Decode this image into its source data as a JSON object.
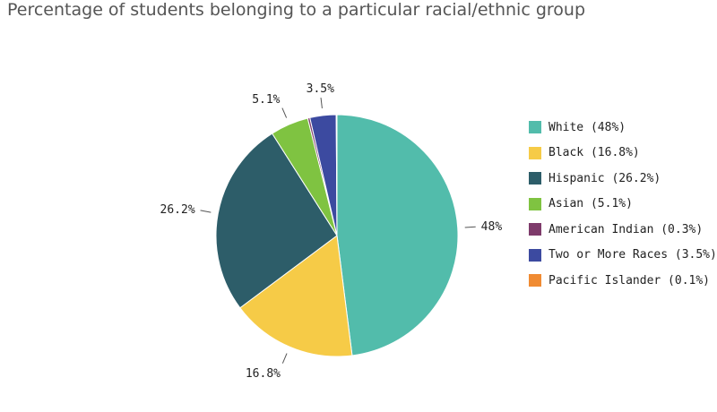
{
  "title": "Percentage of students belonging to a particular racial/ethnic group",
  "chart_data": {
    "type": "pie",
    "title": "Percentage of students belonging to a particular racial/ethnic group",
    "legend_position": "right",
    "slices": [
      {
        "label": "White",
        "value": 48,
        "color": "#52bcab",
        "legend": "White (48%)",
        "data_label": "48%"
      },
      {
        "label": "Black",
        "value": 16.8,
        "color": "#f6cb47",
        "legend": "Black (16.8%)",
        "data_label": "16.8%"
      },
      {
        "label": "Hispanic",
        "value": 26.2,
        "color": "#2d5d69",
        "legend": "Hispanic (26.2%)",
        "data_label": "26.2%"
      },
      {
        "label": "Asian",
        "value": 5.1,
        "color": "#7fc341",
        "legend": "Asian (5.1%)",
        "data_label": "5.1%"
      },
      {
        "label": "American Indian",
        "value": 0.3,
        "color": "#7e3b6b",
        "legend": "American Indian (0.3%)",
        "data_label": ""
      },
      {
        "label": "Two or More Races",
        "value": 3.5,
        "color": "#3c4aa0",
        "legend": "Two or More Races (3.5%)",
        "data_label": "3.5%"
      },
      {
        "label": "Pacific Islander",
        "value": 0.1,
        "color": "#f08b32",
        "legend": "Pacific Islander (0.1%)",
        "data_label": ""
      }
    ]
  }
}
